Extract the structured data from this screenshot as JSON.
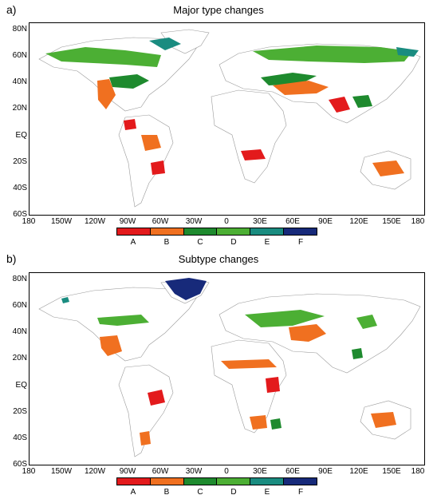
{
  "panels": [
    {
      "letter": "a)",
      "title": "Major type changes",
      "lat_labels": [
        "80N",
        "60N",
        "40N",
        "20N",
        "EQ",
        "20S",
        "40S",
        "60S"
      ],
      "lon_labels": [
        "180",
        "150W",
        "120W",
        "90W",
        "60W",
        "30W",
        "0",
        "30E",
        "60E",
        "90E",
        "120E",
        "150E",
        "180"
      ],
      "legend": [
        "A",
        "B",
        "C",
        "D",
        "E",
        "F"
      ]
    },
    {
      "letter": "b)",
      "title": "Subtype changes",
      "lat_labels": [
        "80N",
        "60N",
        "40N",
        "20N",
        "EQ",
        "20S",
        "40S",
        "60S"
      ],
      "lon_labels": [
        "180",
        "150W",
        "120W",
        "90W",
        "60W",
        "30W",
        "0",
        "30E",
        "60E",
        "90E",
        "120E",
        "150E",
        "180"
      ],
      "legend": [
        "A",
        "B",
        "C",
        "D",
        "E",
        "F"
      ]
    }
  ],
  "legend_colors": [
    "#e31a1c",
    "#f07020",
    "#1e8a2e",
    "#4caf34",
    "#1a8c80",
    "#172a7a"
  ],
  "chart_data": [
    {
      "type": "map",
      "title": "Major type changes",
      "xlim": [
        -180,
        180
      ],
      "ylim": [
        -60,
        90
      ],
      "categories": [
        "A",
        "B",
        "C",
        "D",
        "E",
        "F"
      ]
    },
    {
      "type": "map",
      "title": "Subtype changes",
      "xlim": [
        -180,
        180
      ],
      "ylim": [
        -60,
        90
      ],
      "categories": [
        "A",
        "B",
        "C",
        "D",
        "E",
        "F"
      ]
    }
  ]
}
